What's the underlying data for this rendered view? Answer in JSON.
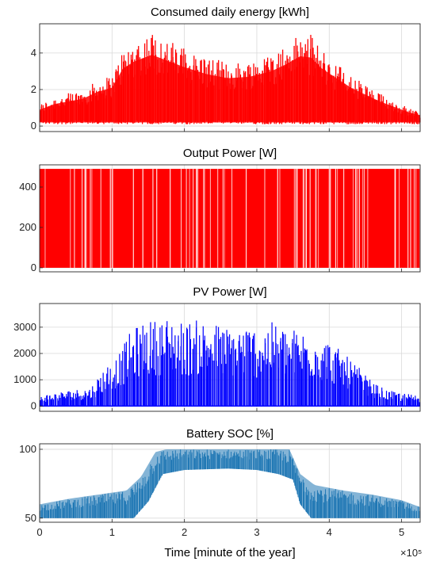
{
  "chart_data": [
    {
      "type": "area",
      "title": "Consumed daily energy [kWh]",
      "color": "#ff0000",
      "ylim": [
        -0.3,
        5.6
      ],
      "yticks": [
        0,
        2,
        4
      ],
      "xlim": [
        0,
        525600
      ],
      "xticks": [
        0,
        1,
        2,
        3,
        4,
        5
      ],
      "grid": true,
      "envelope": {
        "x": [
          0,
          20000,
          40000,
          60000,
          80000,
          100000,
          115000,
          130000,
          155000,
          175000,
          200000,
          230000,
          260000,
          290000,
          320000,
          340000,
          360000,
          375000,
          390000,
          410000,
          430000,
          450000,
          470000,
          490000,
          510000,
          525600
        ],
        "y": [
          1.2,
          1.6,
          1.8,
          2.0,
          2.5,
          2.8,
          4.2,
          4.7,
          5.2,
          4.8,
          4.3,
          3.8,
          3.5,
          3.6,
          4.0,
          4.5,
          5.1,
          5.0,
          4.2,
          3.5,
          2.8,
          2.3,
          1.8,
          1.4,
          1.0,
          0.8
        ]
      }
    },
    {
      "type": "area",
      "title": "Output Power [W]",
      "color": "#ff0000",
      "ylim": [
        -20,
        510
      ],
      "yticks": [
        0,
        200,
        400
      ],
      "xlim": [
        0,
        525600
      ],
      "xticks": [
        0,
        1,
        2,
        3,
        4,
        5
      ],
      "grid": true,
      "envelope": {
        "x": [
          0,
          525600
        ],
        "y": [
          490,
          490
        ]
      }
    },
    {
      "type": "area",
      "title": "PV Power [W]",
      "color": "#0000ff",
      "ylim": [
        -200,
        3900
      ],
      "yticks": [
        0,
        1000,
        2000,
        3000
      ],
      "xlim": [
        0,
        525600
      ],
      "xticks": [
        0,
        1,
        2,
        3,
        4,
        5
      ],
      "grid": true,
      "envelope": {
        "x": [
          0,
          40000,
          70000,
          90000,
          110000,
          125000,
          140000,
          160000,
          180000,
          200000,
          220000,
          240000,
          260000,
          280000,
          300000,
          320000,
          340000,
          360000,
          380000,
          400000,
          420000,
          440000,
          460000,
          480000,
          500000,
          525600
        ],
        "y": [
          400,
          600,
          700,
          1500,
          2000,
          2800,
          3200,
          3300,
          3400,
          3200,
          3300,
          3200,
          3000,
          3100,
          3000,
          3200,
          3000,
          2900,
          2800,
          2500,
          2000,
          1500,
          900,
          600,
          500,
          400
        ]
      }
    },
    {
      "type": "area",
      "title": "Battery SOC [%]",
      "color": "#1f77b4",
      "ylim": [
        47,
        104
      ],
      "yticks": [
        50,
        100
      ],
      "xlim": [
        0,
        525600
      ],
      "xticks": [
        0,
        1,
        2,
        3,
        4,
        5
      ],
      "xlabel": "Time [minute of the year]",
      "xscale_label": "×10⁵",
      "grid": true,
      "upper": {
        "x": [
          0,
          40000,
          80000,
          120000,
          140000,
          160000,
          175000,
          200000,
          240000,
          280000,
          320000,
          345000,
          360000,
          380000,
          420000,
          460000,
          500000,
          525600
        ],
        "y": [
          60,
          64,
          67,
          70,
          80,
          98,
          100,
          100,
          100,
          100,
          100,
          100,
          82,
          74,
          70,
          67,
          63,
          58
        ]
      },
      "lower": {
        "x": [
          0,
          130000,
          150000,
          170000,
          200000,
          260000,
          300000,
          330000,
          350000,
          360000,
          375000,
          525600
        ],
        "y": [
          50,
          50,
          62,
          82,
          85,
          86,
          85,
          82,
          78,
          60,
          50,
          50
        ]
      }
    }
  ]
}
